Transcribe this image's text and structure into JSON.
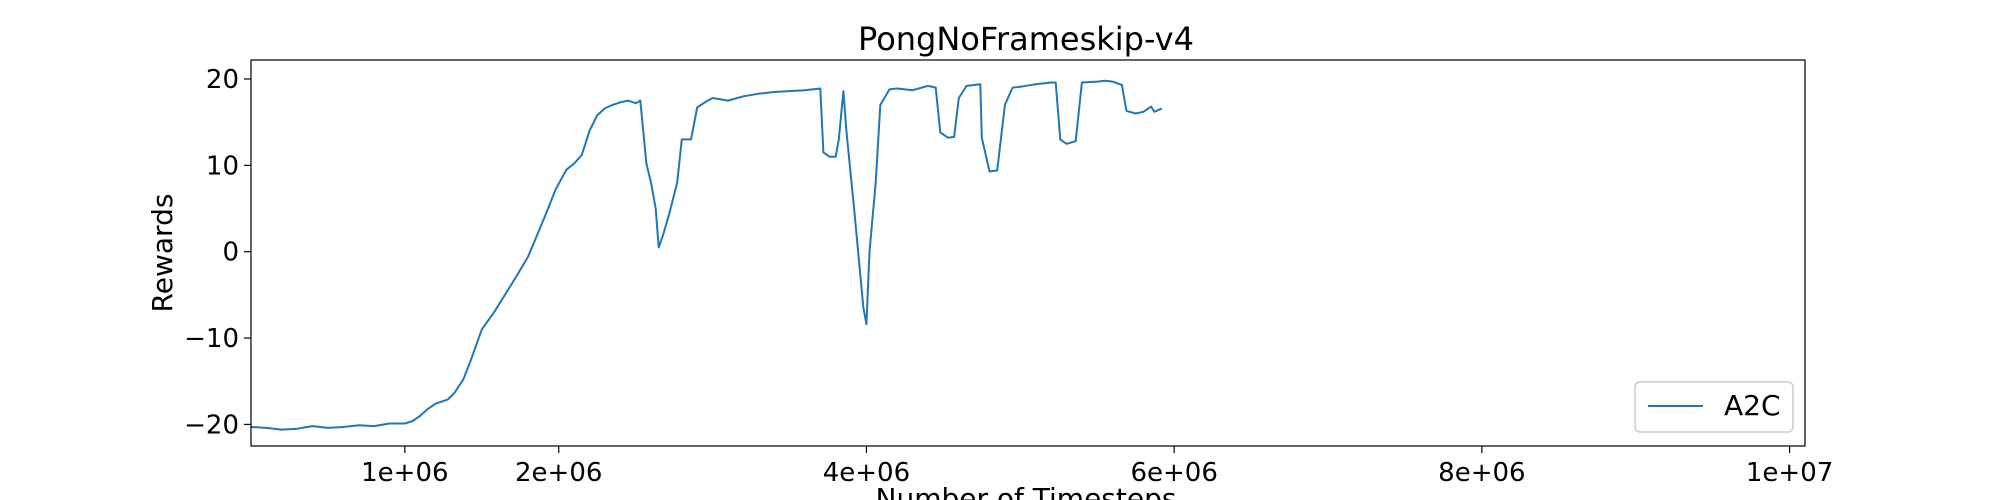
{
  "chart_data": {
    "type": "line",
    "title": "PongNoFrameskip-v4",
    "xlabel": "Number of Timesteps",
    "ylabel": "Rewards",
    "xlim": [
      0,
      10100000
    ],
    "ylim": [
      -22.5,
      22.2
    ],
    "x_ticks": [
      1000000,
      2000000,
      4000000,
      6000000,
      8000000,
      10000000
    ],
    "x_tick_labels": [
      "1e+06",
      "2e+06",
      "4e+06",
      "6e+06",
      "8e+06",
      "1e+07"
    ],
    "y_ticks": [
      -20,
      -10,
      0,
      10,
      20
    ],
    "y_tick_labels": [
      "−20",
      "−10",
      "0",
      "10",
      "20"
    ],
    "grid": false,
    "legend_position": "bottom-right",
    "series": [
      {
        "name": "A2C",
        "color": "#1f77b4",
        "points": [
          [
            0,
            -20.3
          ],
          [
            100000,
            -20.4
          ],
          [
            200000,
            -20.6
          ],
          [
            300000,
            -20.5
          ],
          [
            400000,
            -20.2
          ],
          [
            500000,
            -20.4
          ],
          [
            600000,
            -20.3
          ],
          [
            700000,
            -20.1
          ],
          [
            800000,
            -20.2
          ],
          [
            900000,
            -19.9
          ],
          [
            1000000,
            -19.9
          ],
          [
            1050000,
            -19.6
          ],
          [
            1100000,
            -19.0
          ],
          [
            1150000,
            -18.2
          ],
          [
            1200000,
            -17.6
          ],
          [
            1280000,
            -17.1
          ],
          [
            1320000,
            -16.4
          ],
          [
            1380000,
            -14.8
          ],
          [
            1430000,
            -12.5
          ],
          [
            1500000,
            -9.0
          ],
          [
            1580000,
            -7.0
          ],
          [
            1650000,
            -5.0
          ],
          [
            1720000,
            -3.0
          ],
          [
            1800000,
            -0.6
          ],
          [
            1850000,
            1.5
          ],
          [
            1920000,
            4.5
          ],
          [
            1980000,
            7.2
          ],
          [
            2050000,
            9.5
          ],
          [
            2100000,
            10.2
          ],
          [
            2150000,
            11.2
          ],
          [
            2200000,
            14.0
          ],
          [
            2250000,
            15.8
          ],
          [
            2300000,
            16.6
          ],
          [
            2350000,
            17.0
          ],
          [
            2400000,
            17.3
          ],
          [
            2450000,
            17.5
          ],
          [
            2500000,
            17.2
          ],
          [
            2530000,
            17.5
          ],
          [
            2570000,
            10.2
          ],
          [
            2600000,
            8.0
          ],
          [
            2630000,
            5.0
          ],
          [
            2650000,
            0.5
          ],
          [
            2680000,
            2.0
          ],
          [
            2720000,
            4.5
          ],
          [
            2770000,
            8.0
          ],
          [
            2800000,
            13.0
          ],
          [
            2860000,
            13.0
          ],
          [
            2900000,
            16.7
          ],
          [
            2950000,
            17.3
          ],
          [
            3000000,
            17.8
          ],
          [
            3100000,
            17.5
          ],
          [
            3200000,
            18.0
          ],
          [
            3300000,
            18.3
          ],
          [
            3400000,
            18.5
          ],
          [
            3500000,
            18.6
          ],
          [
            3600000,
            18.7
          ],
          [
            3650000,
            18.8
          ],
          [
            3700000,
            18.9
          ],
          [
            3720000,
            11.5
          ],
          [
            3760000,
            11.0
          ],
          [
            3800000,
            11.0
          ],
          [
            3820000,
            13.0
          ],
          [
            3850000,
            18.6
          ],
          [
            3870000,
            14.0
          ],
          [
            3920000,
            5.0
          ],
          [
            3980000,
            -6.5
          ],
          [
            4000000,
            -8.4
          ],
          [
            4020000,
            0.0
          ],
          [
            4060000,
            8.0
          ],
          [
            4090000,
            17.0
          ],
          [
            4150000,
            18.8
          ],
          [
            4200000,
            18.9
          ],
          [
            4300000,
            18.7
          ],
          [
            4400000,
            19.2
          ],
          [
            4450000,
            19.0
          ],
          [
            4480000,
            13.8
          ],
          [
            4530000,
            13.2
          ],
          [
            4570000,
            13.3
          ],
          [
            4600000,
            17.8
          ],
          [
            4650000,
            19.2
          ],
          [
            4700000,
            19.3
          ],
          [
            4740000,
            19.4
          ],
          [
            4750000,
            13.2
          ],
          [
            4800000,
            9.3
          ],
          [
            4850000,
            9.4
          ],
          [
            4900000,
            17.0
          ],
          [
            4950000,
            19.0
          ],
          [
            5000000,
            19.1
          ],
          [
            5100000,
            19.4
          ],
          [
            5200000,
            19.6
          ],
          [
            5230000,
            19.6
          ],
          [
            5260000,
            13.0
          ],
          [
            5300000,
            12.5
          ],
          [
            5360000,
            12.8
          ],
          [
            5400000,
            19.6
          ],
          [
            5500000,
            19.7
          ],
          [
            5550000,
            19.8
          ],
          [
            5600000,
            19.7
          ],
          [
            5660000,
            19.3
          ],
          [
            5690000,
            16.3
          ],
          [
            5750000,
            16.0
          ],
          [
            5800000,
            16.2
          ],
          [
            5850000,
            16.8
          ],
          [
            5870000,
            16.2
          ],
          [
            5920000,
            16.6
          ]
        ]
      }
    ]
  }
}
